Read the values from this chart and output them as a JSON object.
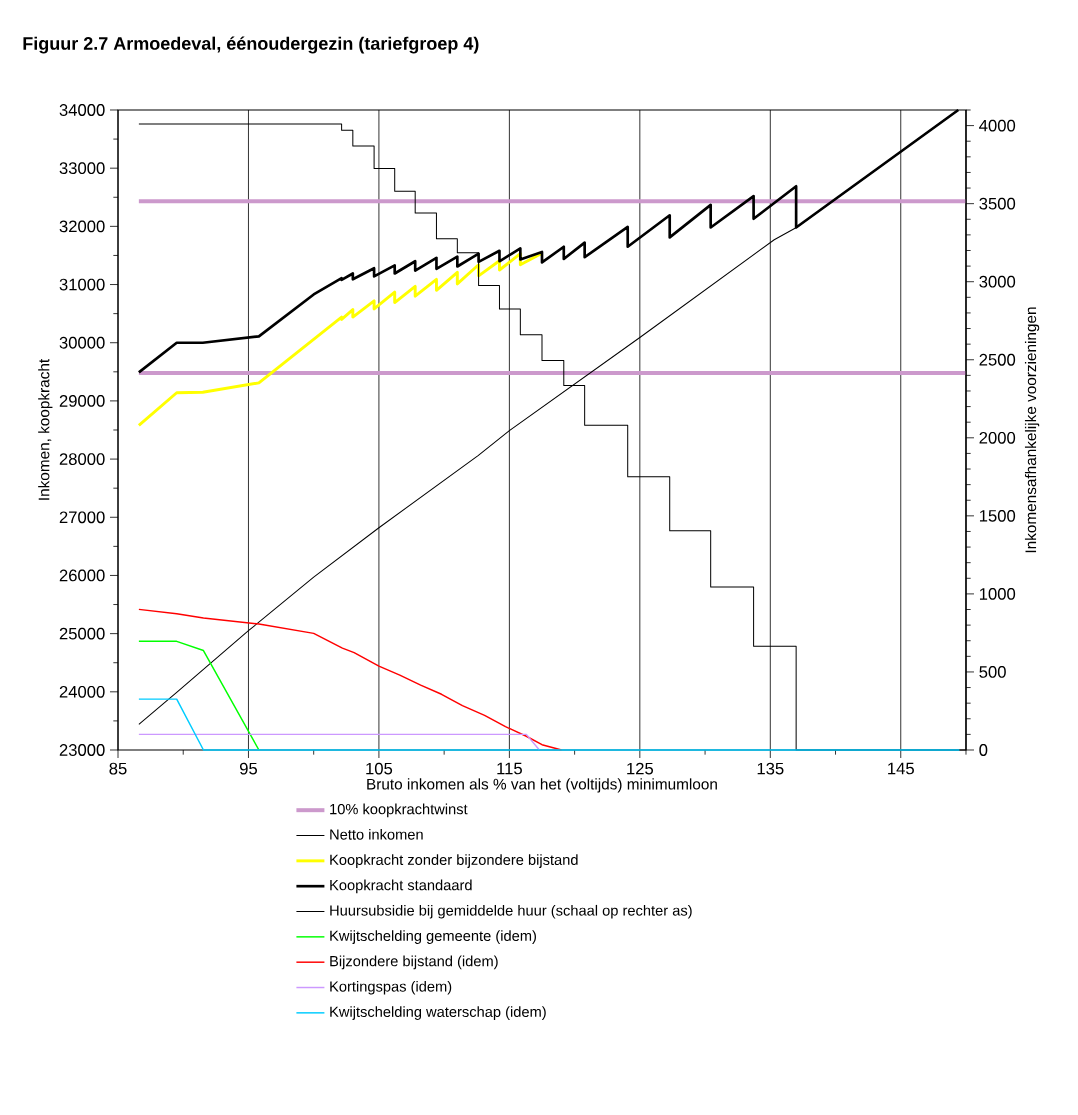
{
  "chart_data": {
    "type": "line",
    "title": "Figuur 2.7  Armoedeval, éénoudergezin (tariefgroep 4)",
    "xlabel": "Bruto inkomen als % van het (voltijds) minimumloon",
    "ylabel": "Inkomen, koopkracht",
    "y2label": "Inkomensafhankelijke voorzieningen",
    "xlim": [
      85,
      150
    ],
    "ylim": [
      23000,
      34000
    ],
    "y2lim": [
      0,
      4100
    ],
    "xticks": [
      85,
      {
        "value": 90,
        "label": null
      },
      95,
      {
        "value": 100,
        "label": null
      },
      105,
      {
        "value": 110,
        "label": null
      },
      115,
      {
        "value": 120,
        "label": null
      },
      125,
      {
        "value": 130,
        "label": null
      },
      135,
      {
        "value": 140,
        "label": null
      },
      145,
      {
        "value": 150,
        "label": null
      }
    ],
    "yticks": [
      23000,
      {
        "value": 23500,
        "label": null
      },
      24000,
      {
        "value": 24500,
        "label": null
      },
      25000,
      {
        "value": 25500,
        "label": null
      },
      26000,
      {
        "value": 26500,
        "label": null
      },
      27000,
      {
        "value": 27500,
        "label": null
      },
      28000,
      {
        "value": 28500,
        "label": null
      },
      29000,
      {
        "value": 29500,
        "label": null
      },
      30000,
      {
        "value": 30500,
        "label": null
      },
      31000,
      {
        "value": 31500,
        "label": null
      },
      32000,
      {
        "value": 32500,
        "label": null
      },
      33000,
      {
        "value": 33500,
        "label": null
      },
      34000
    ],
    "y2ticks": [
      0,
      {
        "value": 100,
        "label": null
      },
      {
        "value": 200,
        "label": null
      },
      {
        "value": 300,
        "label": null
      },
      {
        "value": 400,
        "label": null
      },
      500,
      {
        "value": 600,
        "label": null
      },
      {
        "value": 700,
        "label": null
      },
      {
        "value": 800,
        "label": null
      },
      {
        "value": 900,
        "label": null
      },
      1000,
      {
        "value": 1100,
        "label": null
      },
      {
        "value": 1200,
        "label": null
      },
      {
        "value": 1300,
        "label": null
      },
      {
        "value": 1400,
        "label": null
      },
      1500,
      {
        "value": 1600,
        "label": null
      },
      {
        "value": 1700,
        "label": null
      },
      {
        "value": 1800,
        "label": null
      },
      {
        "value": 1900,
        "label": null
      },
      2000,
      {
        "value": 2100,
        "label": null
      },
      {
        "value": 2200,
        "label": null
      },
      {
        "value": 2300,
        "label": null
      },
      {
        "value": 2400,
        "label": null
      },
      2500,
      {
        "value": 2600,
        "label": null
      },
      {
        "value": 2700,
        "label": null
      },
      {
        "value": 2800,
        "label": null
      },
      {
        "value": 2900,
        "label": null
      },
      3000,
      {
        "value": 3100,
        "label": null
      },
      {
        "value": 3200,
        "label": null
      },
      {
        "value": 3300,
        "label": null
      },
      {
        "value": 3400,
        "label": null
      },
      3500,
      {
        "value": 3600,
        "label": null
      },
      {
        "value": 3700,
        "label": null
      },
      {
        "value": 3800,
        "label": null
      },
      {
        "value": 3900,
        "label": null
      },
      4000,
      {
        "value": 4100,
        "label": null
      }
    ],
    "grid": "x",
    "legend": "bottom",
    "series": [
      {
        "name": "10% koopkrachtwinst",
        "color": "#cc99cc",
        "x": [
          86.6,
          150
        ],
        "values": [
          32430,
          32430
        ]
      },
      {
        "color": "#cc99cc",
        "x": [
          86.6,
          150
        ],
        "values": [
          29480,
          29480
        ]
      },
      {
        "name": "Netto inkomen",
        "color": "#000000",
        "x": [
          86.6,
          89.5,
          95,
          100,
          105,
          112.6,
          115,
          125,
          135.3,
          137,
          149.4
        ],
        "values": [
          23440,
          23990,
          25050,
          25970,
          26820,
          28060,
          28490,
          30090,
          31770,
          31980,
          34000
        ]
      },
      {
        "name": "Koopkracht zonder bijzondere bijstand",
        "color": "#ffff00",
        "x": [
          86.6,
          89.5,
          91.5,
          95.8,
          102.14,
          102.14,
          103,
          103,
          104.63,
          104.63,
          106.21,
          106.21,
          107.78,
          107.78,
          109.41,
          109.41,
          111.01,
          111.01,
          112.64,
          112.64,
          114.24,
          114.24,
          115.84,
          115.84,
          117.5
        ],
        "values": [
          28580,
          29140,
          29150,
          29310,
          30440,
          30400,
          30570,
          30440,
          30720,
          30580,
          30870,
          30690,
          30970,
          30800,
          31090,
          30900,
          31210,
          31010,
          31340,
          31150,
          31410,
          31250,
          31530,
          31340,
          31540
        ]
      },
      {
        "name": "Koopkracht standaard",
        "color": "#000000",
        "x": [
          86.6,
          89.5,
          91.5,
          95.8,
          100,
          102.14,
          102.14,
          103,
          103,
          104.63,
          104.63,
          106.21,
          106.21,
          107.78,
          107.78,
          109.41,
          109.41,
          111.01,
          111.01,
          112.64,
          112.64,
          114.24,
          114.24,
          115.84,
          115.84,
          117.5,
          117.5,
          119.17,
          119.17,
          120.77,
          120.77,
          124.07,
          124.07,
          127.29,
          127.29,
          130.43,
          130.43,
          133.72,
          133.72,
          136.98,
          136.98,
          149.41
        ],
        "values": [
          29490,
          30000,
          30000,
          30110,
          30830,
          31110,
          31080,
          31190,
          31090,
          31280,
          31140,
          31330,
          31190,
          31400,
          31240,
          31460,
          31270,
          31480,
          31310,
          31530,
          31390,
          31580,
          31400,
          31620,
          31430,
          31560,
          31380,
          31650,
          31440,
          31720,
          31470,
          31990,
          31650,
          32190,
          31810,
          32370,
          31980,
          32520,
          32130,
          32690,
          31980,
          34000
        ]
      },
      {
        "name": "Huursubsidie bij gemiddelde huur (schaal op rechter as)",
        "type": "step",
        "axis": "y2",
        "color": "#000000",
        "x": [
          86.6,
          102.14,
          103,
          104.63,
          106.21,
          107.78,
          109.41,
          111.01,
          112.64,
          114.24,
          115.84,
          117.5,
          119.17,
          120.77,
          124.07,
          127.29,
          130.43,
          133.72,
          136.98,
          150
        ],
        "values": [
          4010,
          3970,
          3870,
          3725,
          3580,
          3440,
          3275,
          3185,
          2975,
          2825,
          2660,
          2495,
          2335,
          2080,
          1750,
          1405,
          1045,
          665,
          0,
          0
        ]
      },
      {
        "name": "Kwijtschelding gemeente (idem)",
        "axis": "y2",
        "color": "#00ff00",
        "x": [
          86.6,
          89.5,
          91.55,
          95.8
        ],
        "values": [
          696,
          696,
          637,
          0
        ]
      },
      {
        "name": "Bijzondere bijstand (idem)",
        "axis": "y2",
        "color": "#ff0000",
        "x": [
          86.6,
          89.5,
          91.55,
          95.8,
          100,
          102.2,
          103.1,
          105,
          106.6,
          108.2,
          109.8,
          111.4,
          113.1,
          114.7,
          116.3,
          117.5,
          119
        ],
        "values": [
          901,
          873,
          846,
          807,
          747,
          653,
          624,
          537,
          480,
          416,
          357,
          284,
          222,
          150,
          88,
          34,
          0
        ]
      },
      {
        "name": "Kortingspas (idem)",
        "axis": "y2",
        "color": "#cc99ff",
        "x": [
          86.6,
          116.3,
          117.3
        ],
        "values": [
          100,
          100,
          0
        ]
      },
      {
        "name": "Kwijtschelding waterschap (idem)",
        "axis": "y2",
        "color": "#00ccff",
        "x": [
          86.6,
          89.5,
          91.55,
          149.5
        ],
        "values": [
          326,
          326,
          0,
          0
        ]
      }
    ]
  }
}
